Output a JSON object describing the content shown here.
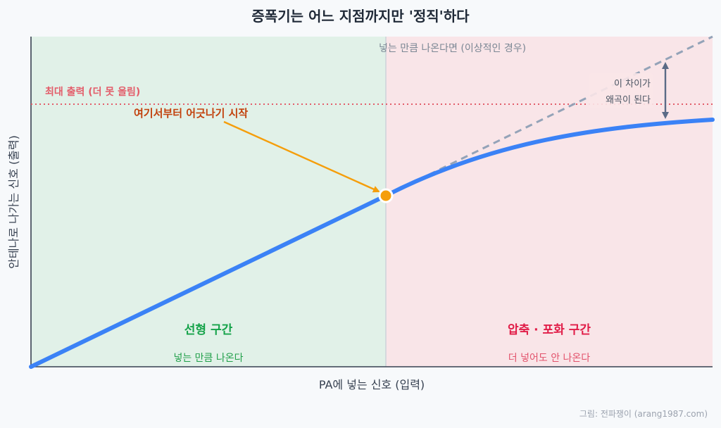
{
  "title": "증폭기는 어느 지점까지만 '정직'하다",
  "axes": {
    "xlabel": "PA에 넣는 신호 (입력)",
    "ylabel": "안테나로 나가는 신호 (출력)"
  },
  "labels": {
    "max_output": "최대 출력 (더 못 올림)",
    "ideal": "넣는 만큼 나온다면 (이상적인 경우)",
    "start": "여기서부터 어긋나기 시작",
    "gap_line1": "이 차이가",
    "gap_line2": "왜곡이 된다"
  },
  "zones": {
    "linear": {
      "title": "선형 구간",
      "desc": "넣는 만큼 나온다"
    },
    "saturation": {
      "title": "압축 · 포화 구간",
      "desc": "더 넣어도 안 나온다"
    }
  },
  "credit": "그림: 전파쟁이 (arang1987.com)",
  "colors": {
    "linear_zone": "#e1f1e8",
    "saturation_zone": "#f9e5e8",
    "curve": "#3b82f6",
    "ideal": "#94a3b8",
    "max_line": "#e35d6a",
    "point": "#f59e0b",
    "annotation": "#c2410c",
    "linear_text": "#16a34a",
    "saturation_text": "#e11d48"
  },
  "icons": {
    "gap_arrow": "double-headed-arrow-icon",
    "pointer": "arrow-icon"
  }
}
